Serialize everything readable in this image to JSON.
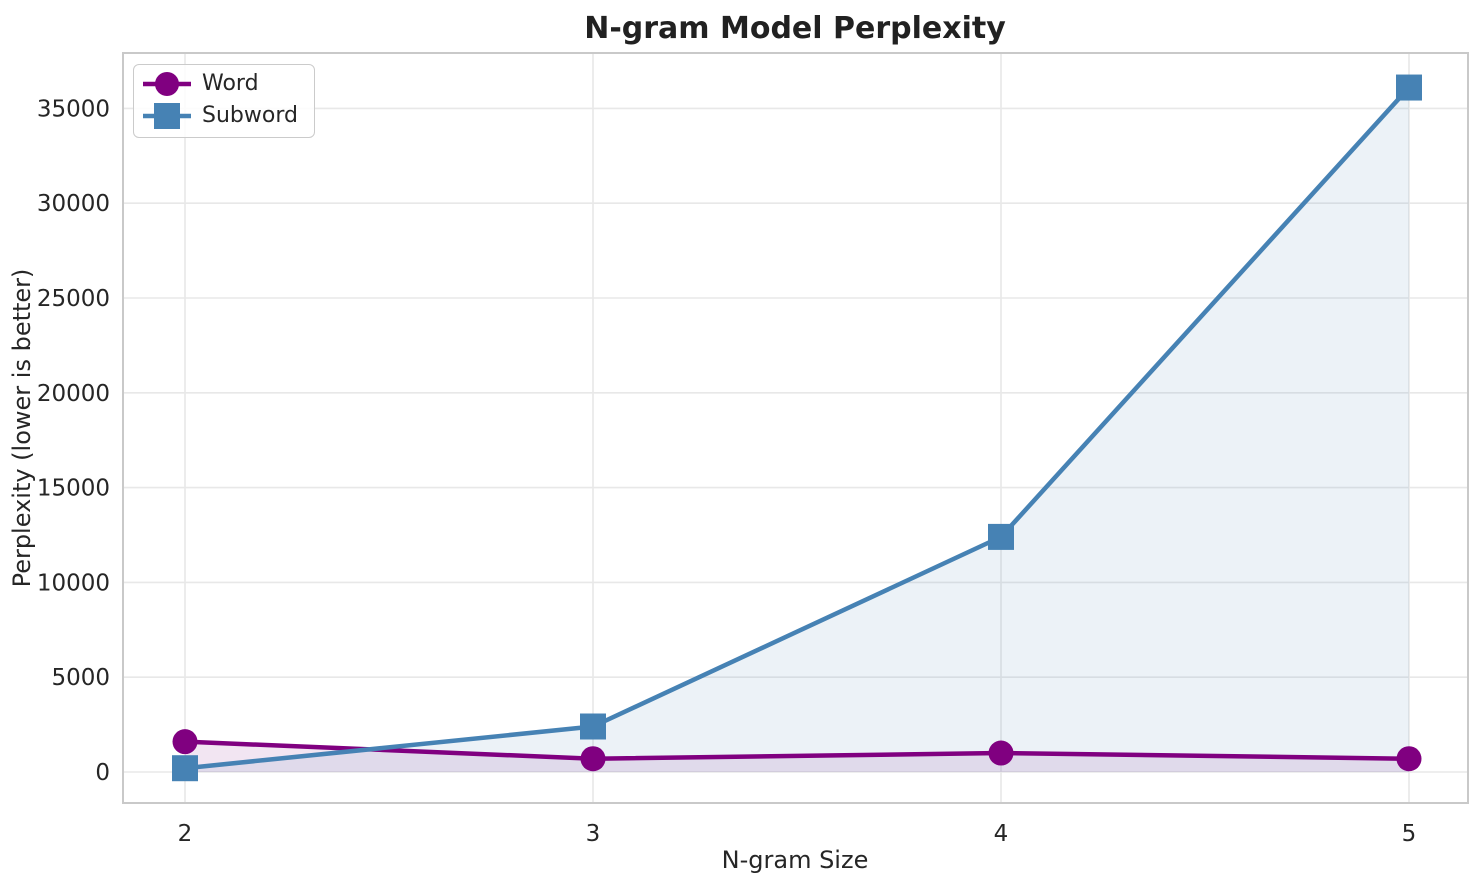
{
  "title": "N-gram Model Perplexity",
  "chart_data": {
    "type": "line",
    "title": "N-gram Model Perplexity",
    "xlabel": "N-gram Size",
    "ylabel": "Perplexity (lower is better)",
    "x": [
      2,
      3,
      4,
      5
    ],
    "xticks": [
      "2",
      "3",
      "4",
      "5"
    ],
    "yticks": [
      0,
      5000,
      10000,
      15000,
      20000,
      25000,
      30000,
      35000
    ],
    "xlim": [
      1.85,
      5.15
    ],
    "ylim": [
      -1600,
      38000
    ],
    "grid": true,
    "legend_position": "upper-left",
    "series": [
      {
        "name": "Word",
        "values": [
          1600,
          700,
          1000,
          700
        ],
        "color": "#800080",
        "marker": "circle",
        "line_width": 4.5,
        "fill_to_zero": true,
        "fill_opacity": 0.1
      },
      {
        "name": "Subword",
        "values": [
          200,
          2400,
          12400,
          36100
        ],
        "color": "#4682B4",
        "marker": "square",
        "line_width": 4.5,
        "fill_to_zero": true,
        "fill_opacity": 0.1
      }
    ]
  },
  "theme": {
    "background": "#ffffff",
    "grid_color": "#e8e8e8",
    "spine_color": "#c9c9c9",
    "text_color": "#262626",
    "title_color": "#212121"
  }
}
